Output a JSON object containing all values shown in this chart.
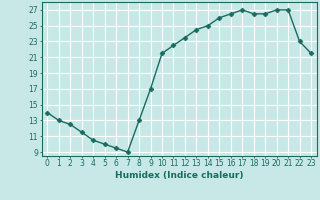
{
  "x": [
    0,
    1,
    2,
    3,
    4,
    5,
    6,
    7,
    8,
    9,
    10,
    11,
    12,
    13,
    14,
    15,
    16,
    17,
    18,
    19,
    20,
    21,
    22,
    23
  ],
  "y": [
    14,
    13,
    12.5,
    11.5,
    10.5,
    10,
    9.5,
    9,
    13,
    17,
    21.5,
    22.5,
    23.5,
    24.5,
    25,
    26,
    26.5,
    27,
    26.5,
    26.5,
    27,
    27,
    23,
    21.5
  ],
  "line_color": "#1a6b5e",
  "marker": "D",
  "marker_size": 2.5,
  "bg_color": "#c8e8e8",
  "grid_color": "#ffffff",
  "xlabel": "Humidex (Indice chaleur)",
  "xlim": [
    -0.5,
    23.5
  ],
  "ylim": [
    8.5,
    28
  ],
  "xticks": [
    0,
    1,
    2,
    3,
    4,
    5,
    6,
    7,
    8,
    9,
    10,
    11,
    12,
    13,
    14,
    15,
    16,
    17,
    18,
    19,
    20,
    21,
    22,
    23
  ],
  "yticks": [
    9,
    11,
    13,
    15,
    17,
    19,
    21,
    23,
    25,
    27
  ],
  "tick_fontsize": 5.5,
  "xlabel_fontsize": 6.5,
  "axis_color": "#1a6b5e",
  "line_width": 1.0
}
